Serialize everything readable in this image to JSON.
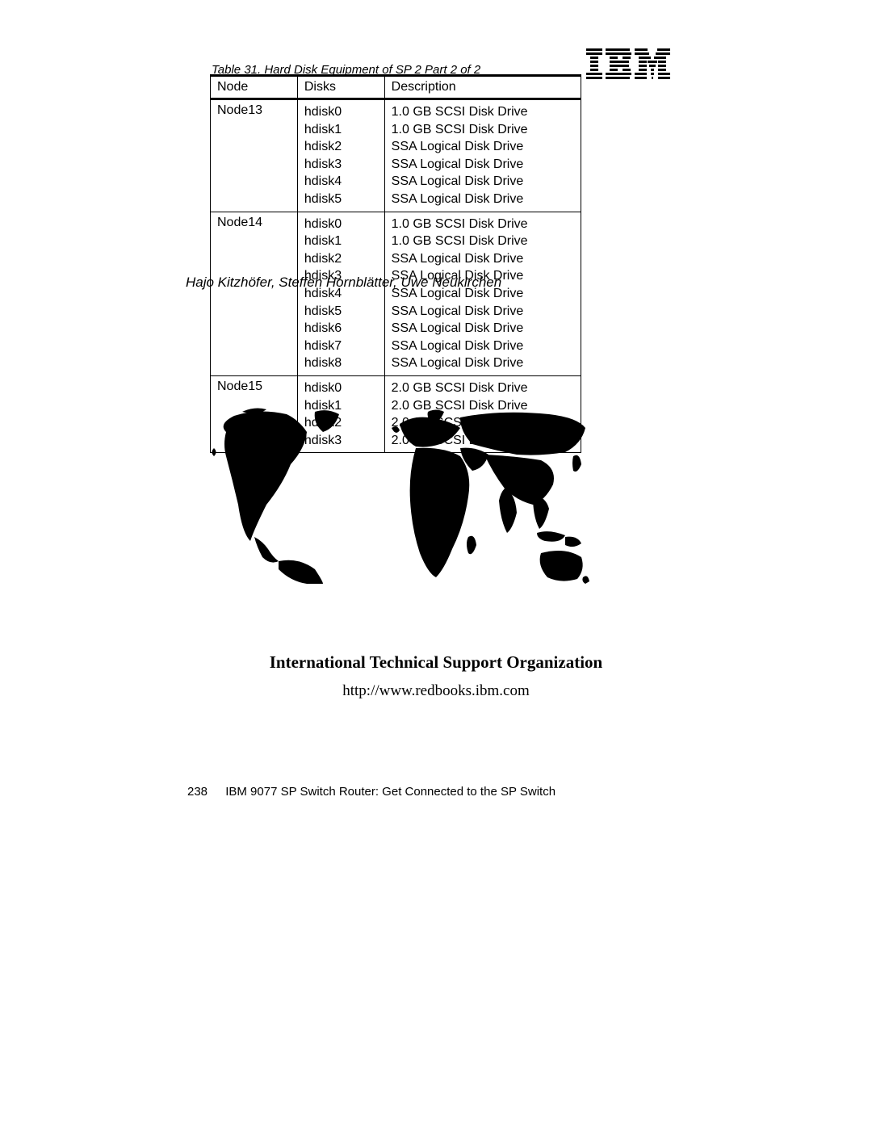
{
  "caption": "Table 31.  Hard Disk Equipment of SP 2 Part 2 of 2",
  "headers": {
    "node": "Node",
    "disks": "Disks",
    "description": "Description"
  },
  "rows": [
    {
      "node": "Node13",
      "disks": [
        "hdisk0",
        "hdisk1",
        "hdisk2",
        "hdisk3",
        "hdisk4",
        "hdisk5"
      ],
      "desc": [
        "1.0 GB SCSI Disk Drive",
        "1.0 GB SCSI Disk Drive",
        "SSA Logical Disk Drive",
        "SSA Logical Disk Drive",
        "SSA Logical Disk Drive",
        "SSA Logical Disk Drive"
      ]
    },
    {
      "node": "Node14",
      "disks": [
        "hdisk0",
        "hdisk1",
        "hdisk2",
        "hdisk3",
        "hdisk4",
        "hdisk5",
        "hdisk6",
        "hdisk7",
        "hdisk8"
      ],
      "desc": [
        "1.0 GB SCSI Disk Drive",
        "1.0 GB SCSI Disk Drive",
        "SSA Logical Disk Drive",
        "SSA Logical Disk Drive",
        "SSA Logical Disk Drive",
        "SSA Logical Disk Drive",
        "SSA Logical Disk Drive",
        "SSA Logical Disk Drive",
        "SSA Logical Disk Drive"
      ]
    },
    {
      "node": "Node15",
      "disks": [
        "hdisk0",
        "hdisk1",
        "hdisk2",
        "hdisk3"
      ],
      "desc": [
        "2.0 GB SCSI Disk Drive",
        "2.0 GB SCSI Disk Drive",
        "2.0 GB SCSI Disk Drive",
        "2.0 GB SCSI Disk Drive"
      ]
    }
  ],
  "authors_overlay": "Hajo Kitzhöfer, Steffen Hornblätter, Uwe Neukirchen",
  "itso_heading": "International Technical Support Organization",
  "redbooks_url": "http://www.redbooks.ibm.com",
  "footer": {
    "page": "238",
    "title": "IBM 9077 SP Switch Router: Get Connected to the SP Switch"
  },
  "col_widths": {
    "node": "108px",
    "disks": "108px",
    "description": "244px"
  }
}
